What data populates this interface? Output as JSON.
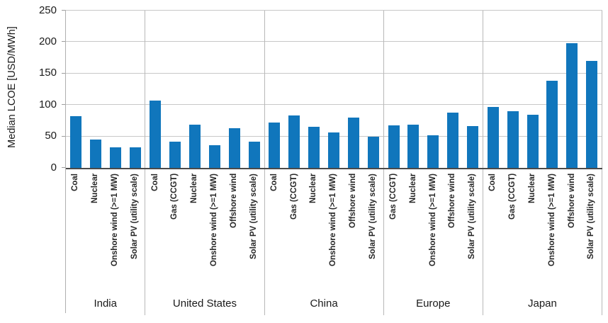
{
  "chart_data": {
    "type": "bar",
    "title": "",
    "ylabel": "Median LCOE [USD/MWh]",
    "xlabel": "",
    "ylim": [
      0,
      250
    ],
    "y_ticks": [
      0,
      50,
      100,
      150,
      200,
      250
    ],
    "grid": "horizontal",
    "legend": "none",
    "bar_color": "#1076BC",
    "groups": [
      {
        "label": "India",
        "bars": [
          {
            "category": "Coal",
            "value": 82
          },
          {
            "category": "Nuclear",
            "value": 45
          },
          {
            "category": "Onshore wind (>=1 MW)",
            "value": 33
          },
          {
            "category": "Solar PV (utility scale)",
            "value": 33
          }
        ]
      },
      {
        "label": "United States",
        "bars": [
          {
            "category": "Coal",
            "value": 107
          },
          {
            "category": "Gas (CCGT)",
            "value": 42
          },
          {
            "category": "Nuclear",
            "value": 69
          },
          {
            "category": "Onshore wind (>=1 MW)",
            "value": 36
          },
          {
            "category": "Offshore wind",
            "value": 63
          },
          {
            "category": "Solar PV (utility scale)",
            "value": 42
          }
        ]
      },
      {
        "label": "China",
        "bars": [
          {
            "category": "Coal",
            "value": 72
          },
          {
            "category": "Gas (CCGT)",
            "value": 83
          },
          {
            "category": "Nuclear",
            "value": 65
          },
          {
            "category": "Onshore wind (>=1 MW)",
            "value": 56
          },
          {
            "category": "Offshore wind",
            "value": 80
          },
          {
            "category": "Solar PV (utility scale)",
            "value": 49
          }
        ]
      },
      {
        "label": "Europe",
        "bars": [
          {
            "category": "Gas (CCGT)",
            "value": 68
          },
          {
            "category": "Nuclear",
            "value": 69
          },
          {
            "category": "Onshore wind (>=1 MW)",
            "value": 52
          },
          {
            "category": "Offshore wind",
            "value": 88
          },
          {
            "category": "Solar PV (utility scale)",
            "value": 67
          }
        ]
      },
      {
        "label": "Japan",
        "bars": [
          {
            "category": "Coal",
            "value": 97
          },
          {
            "category": "Gas (CCGT)",
            "value": 90
          },
          {
            "category": "Nuclear",
            "value": 85
          },
          {
            "category": "Onshore wind (>=1 MW)",
            "value": 138
          },
          {
            "category": "Offshore wind",
            "value": 198
          },
          {
            "category": "Solar PV (utility scale)",
            "value": 170
          }
        ]
      }
    ]
  }
}
